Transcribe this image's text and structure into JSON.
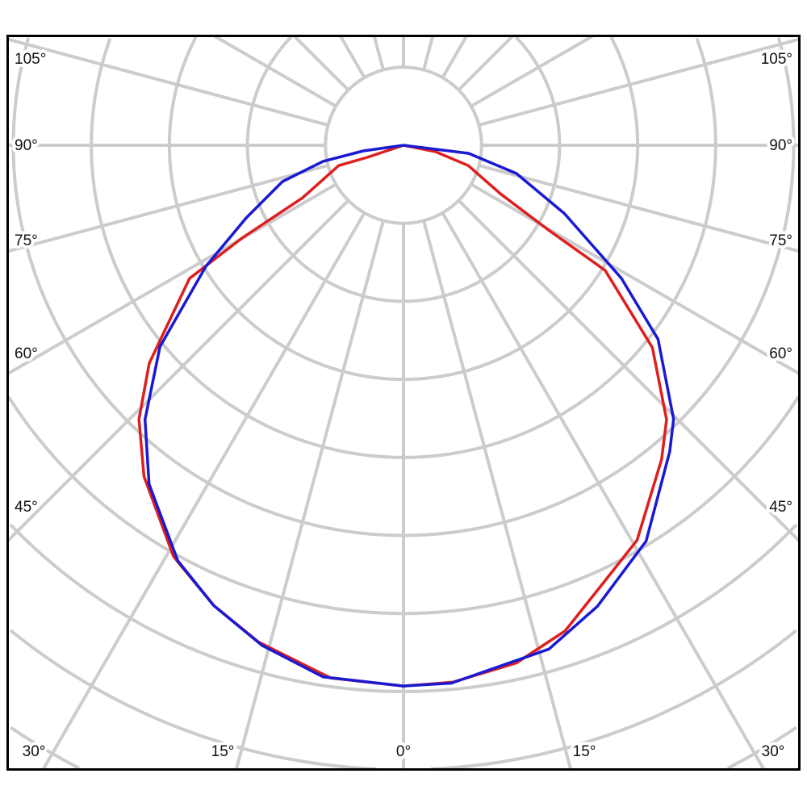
{
  "chart_data": {
    "type": "polar",
    "title": "",
    "angle_labels": {
      "left": [
        "105°",
        "90°",
        "75°",
        "60°",
        "45°"
      ],
      "bottom": [
        "30°",
        "15°",
        "0°",
        "15°",
        "30°"
      ],
      "right": [
        "105°",
        "90°",
        "75°",
        "60°",
        "45°"
      ]
    },
    "angular_grid_step_deg": 15,
    "radial_grid_step": 1,
    "grid": true,
    "colors": {
      "grid": "#cccccc",
      "frame": "#000000"
    },
    "series": [
      {
        "color": "#dd1f1f",
        "points": [
          [
            -75,
            0
          ],
          [
            -71.6,
            0.49
          ],
          [
            -72.6,
            0.87
          ],
          [
            -62.5,
            1.46
          ],
          [
            -60.1,
            2.39
          ],
          [
            -58.1,
            3.23
          ],
          [
            -49.4,
            4.29
          ],
          [
            -44,
            4.88
          ],
          [
            -38.1,
            5.39
          ],
          [
            -29.2,
            6.04
          ],
          [
            -22.4,
            6.38
          ],
          [
            -16.3,
            6.63
          ],
          [
            -7.8,
            6.89
          ],
          [
            0,
            6.93
          ],
          [
            5.2,
            6.91
          ],
          [
            12.3,
            6.79
          ],
          [
            18.4,
            6.56
          ],
          [
            24.8,
            6.15
          ],
          [
            30.6,
            5.88
          ],
          [
            39.4,
            5.21
          ],
          [
            43.8,
            4.87
          ],
          [
            50.9,
            4.11
          ],
          [
            58.2,
            3.04
          ],
          [
            59.7,
            2.15
          ],
          [
            63.4,
            1.39
          ],
          [
            72.6,
            0.87
          ],
          [
            78.7,
            0.42
          ],
          [
            80,
            0
          ]
        ]
      },
      {
        "color": "#1a1ad2",
        "points": [
          [
            -85,
            0
          ],
          [
            -82,
            0.52
          ],
          [
            -78.7,
            1.05
          ],
          [
            -73.3,
            1.62
          ],
          [
            -65.2,
            2.22
          ],
          [
            -58.5,
            2.97
          ],
          [
            -50.4,
            4.05
          ],
          [
            -43.3,
            4.83
          ],
          [
            -36.9,
            5.43
          ],
          [
            -28.5,
            6.06
          ],
          [
            -22.4,
            6.38
          ],
          [
            -15.8,
            6.66
          ],
          [
            -8.6,
            6.89
          ],
          [
            0,
            6.93
          ],
          [
            5.1,
            6.92
          ],
          [
            16.1,
            6.72
          ],
          [
            22.8,
            6.41
          ],
          [
            31.5,
            5.95
          ],
          [
            41,
            5.2
          ],
          [
            44.6,
            4.93
          ],
          [
            52.7,
            4.1
          ],
          [
            58.6,
            3.27
          ],
          [
            67,
            2.24
          ],
          [
            76,
            1.49
          ],
          [
            82.9,
            0.84
          ],
          [
            88,
            0
          ]
        ]
      }
    ]
  }
}
